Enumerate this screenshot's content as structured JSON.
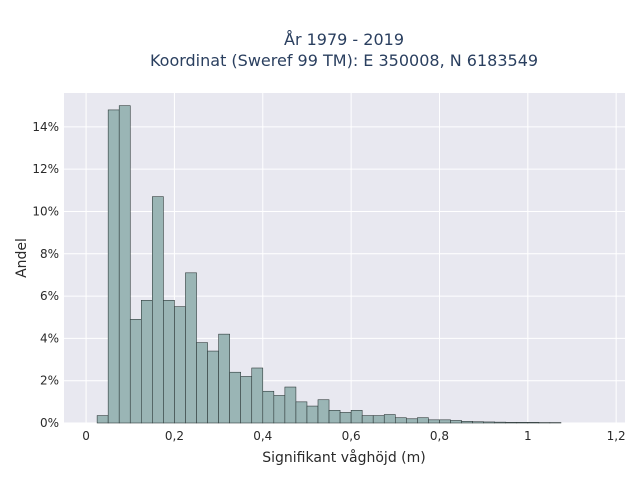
{
  "chart_data": {
    "type": "bar",
    "title": "År 1979 - 2019",
    "subtitle": "Koordinat (Sweref 99 TM): E 350008, N 6183549",
    "xlabel": "Signifikant våghöjd (m)",
    "ylabel": "Andel",
    "xlim": [
      -0.05,
      1.22
    ],
    "ylim": [
      0,
      0.156
    ],
    "x_ticks": [
      0,
      0.2,
      0.4,
      0.6,
      0.8,
      1.0,
      1.2
    ],
    "x_tick_labels": [
      "0",
      "0,2",
      "0,4",
      "0,6",
      "0,8",
      "1",
      "1,2"
    ],
    "y_ticks": [
      0,
      0.02,
      0.04,
      0.06,
      0.08,
      0.1,
      0.12,
      0.14
    ],
    "y_tick_labels": [
      "0%",
      "2%",
      "4%",
      "6%",
      "8%",
      "10%",
      "12%",
      "14%"
    ],
    "grid": true,
    "bin_width": 0.025,
    "bin_starts": [
      0.025,
      0.05,
      0.075,
      0.1,
      0.125,
      0.15,
      0.175,
      0.2,
      0.225,
      0.25,
      0.275,
      0.3,
      0.325,
      0.35,
      0.375,
      0.4,
      0.425,
      0.45,
      0.475,
      0.5,
      0.525,
      0.55,
      0.575,
      0.6,
      0.625,
      0.65,
      0.675,
      0.7,
      0.725,
      0.75,
      0.775,
      0.8,
      0.825,
      0.85,
      0.875,
      0.9,
      0.925,
      0.95,
      0.975,
      1.0,
      1.025,
      1.05
    ],
    "values": [
      0.0035,
      0.148,
      0.15,
      0.049,
      0.058,
      0.107,
      0.058,
      0.055,
      0.071,
      0.038,
      0.034,
      0.042,
      0.024,
      0.022,
      0.026,
      0.015,
      0.013,
      0.017,
      0.01,
      0.008,
      0.011,
      0.006,
      0.005,
      0.006,
      0.0035,
      0.0035,
      0.004,
      0.0025,
      0.002,
      0.0025,
      0.0015,
      0.0015,
      0.0012,
      0.0008,
      0.0006,
      0.0005,
      0.0004,
      0.0003,
      0.0003,
      0.0003,
      0.0002,
      0.0002
    ],
    "bar_color": "#9ab5b5",
    "bar_edge_color": "#2f3b3b",
    "plot_bg": "#e8e8f0",
    "grid_color": "#ffffff"
  }
}
